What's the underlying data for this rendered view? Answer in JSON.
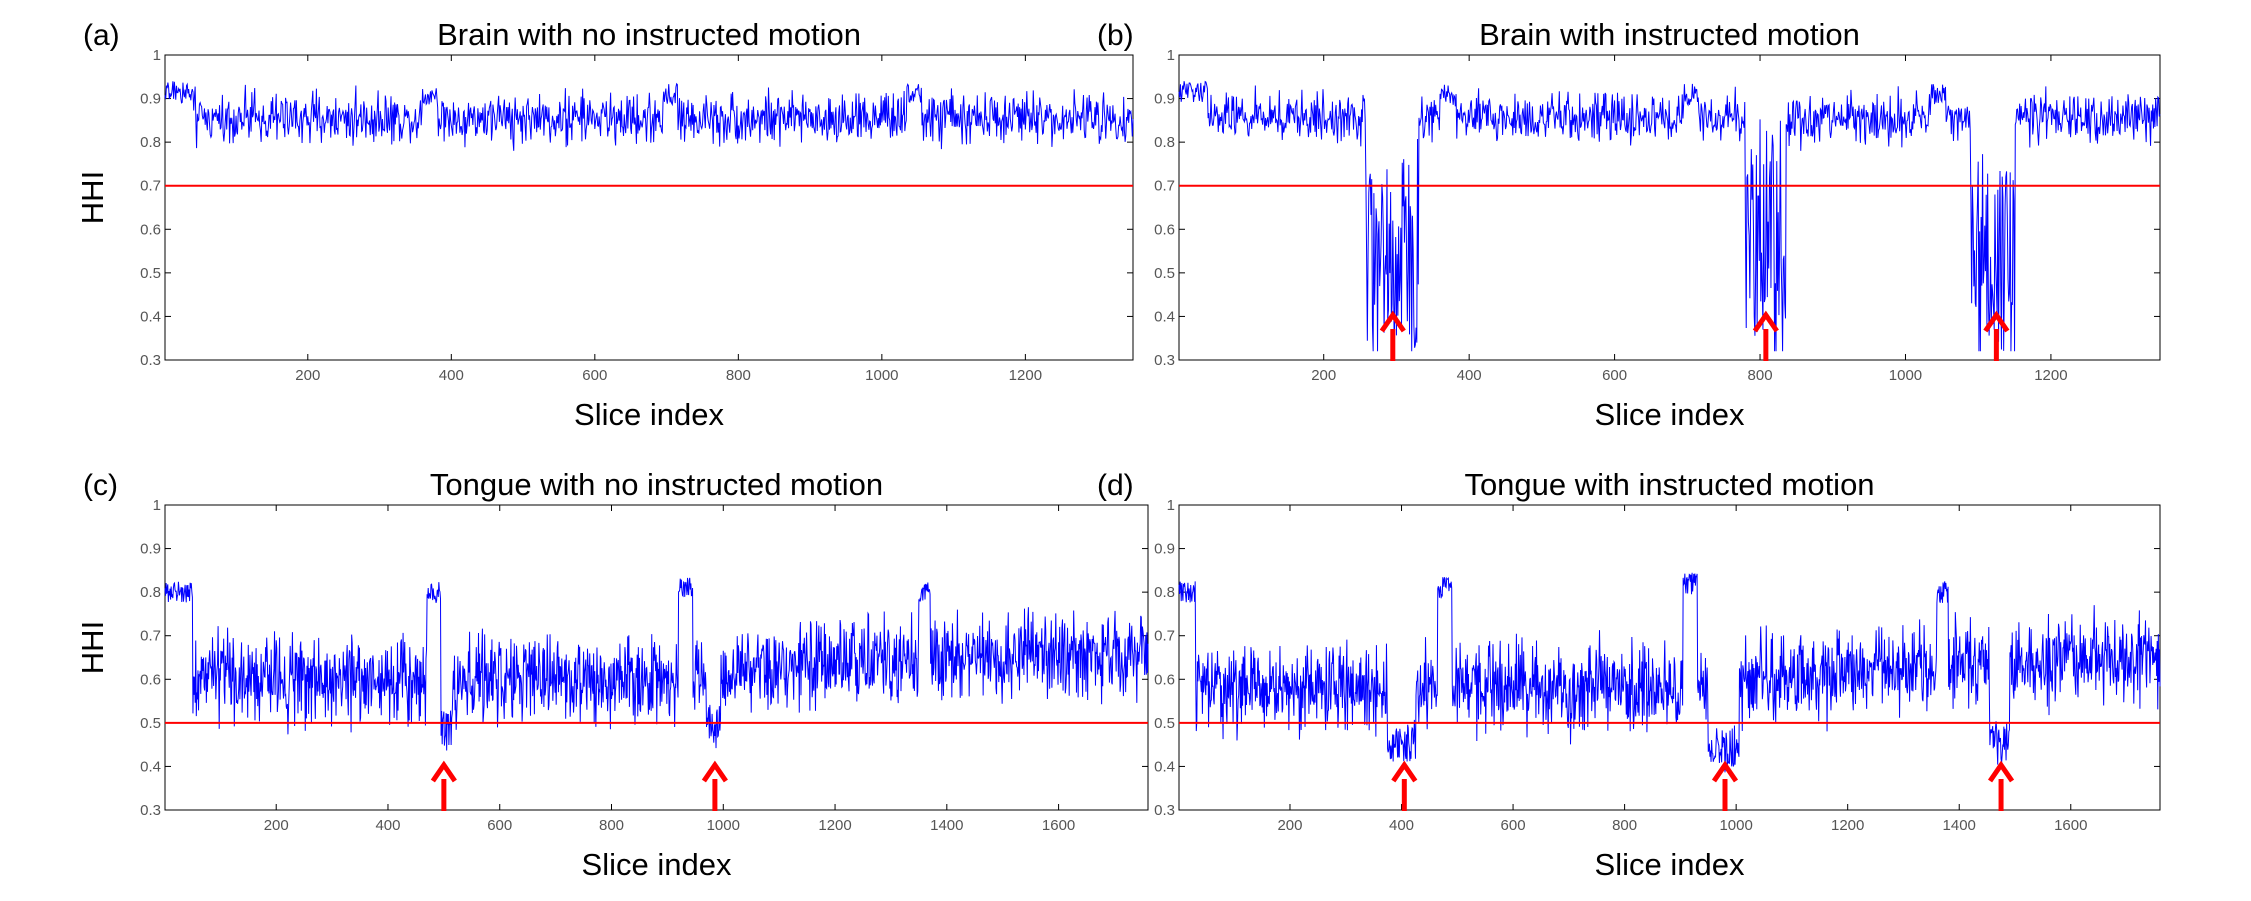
{
  "chart_data": [
    {
      "type": "line",
      "panel_label": "(a)",
      "title": "Brain with no instructed motion",
      "xlabel": "Slice index",
      "ylabel": "HHI",
      "xlim": [
        1,
        1350
      ],
      "ylim": [
        0.3,
        1.0
      ],
      "xticks": [
        200,
        400,
        600,
        800,
        1000,
        1200
      ],
      "yticks": [
        0.3,
        0.4,
        0.5,
        0.6,
        0.7,
        0.8,
        0.9,
        1
      ],
      "grid": false,
      "threshold": 0.7,
      "arrows_at": [],
      "series_profile": {
        "base": 0.855,
        "noise": 0.035,
        "highs": [
          [
            1,
            40,
            0.915
          ],
          [
            360,
            380,
            0.91
          ],
          [
            695,
            715,
            0.91
          ],
          [
            1035,
            1055,
            0.91
          ]
        ],
        "dips": []
      },
      "colors": {
        "line": "#0000ff",
        "threshold": "#ff0000",
        "arrow": "#ff0000"
      }
    },
    {
      "type": "line",
      "panel_label": "(b)",
      "title": "Brain with instructed motion",
      "xlabel": "Slice index",
      "ylabel": "",
      "xlim": [
        1,
        1350
      ],
      "ylim": [
        0.3,
        1.0
      ],
      "xticks": [
        200,
        400,
        600,
        800,
        1000,
        1200
      ],
      "yticks": [
        0.3,
        0.4,
        0.5,
        0.6,
        0.7,
        0.8,
        0.9,
        1
      ],
      "grid": false,
      "threshold": 0.7,
      "arrows_at": [
        295,
        808,
        1125
      ],
      "series_profile": {
        "base": 0.855,
        "noise": 0.035,
        "highs": [
          [
            1,
            40,
            0.915
          ],
          [
            360,
            380,
            0.91
          ],
          [
            695,
            715,
            0.91
          ],
          [
            1035,
            1055,
            0.91
          ]
        ],
        "dips": [
          [
            258,
            330,
            0.52,
            0.16
          ],
          [
            780,
            835,
            0.55,
            0.18
          ],
          [
            1090,
            1150,
            0.55,
            0.16
          ]
        ]
      },
      "colors": {
        "line": "#0000ff",
        "threshold": "#ff0000",
        "arrow": "#ff0000"
      }
    },
    {
      "type": "line",
      "panel_label": "(c)",
      "title": "Tongue with no instructed motion",
      "xlabel": "Slice index",
      "ylabel": "HHI",
      "xlim": [
        1,
        1760
      ],
      "ylim": [
        0.3,
        1.0
      ],
      "xticks": [
        200,
        400,
        600,
        800,
        1000,
        1200,
        1400,
        1600
      ],
      "yticks": [
        0.3,
        0.4,
        0.5,
        0.6,
        0.7,
        0.8,
        0.9,
        1
      ],
      "grid": false,
      "threshold": 0.5,
      "arrows_at": [
        500,
        985
      ],
      "series_profile": {
        "base": 0.6,
        "noise": 0.06,
        "trend": [
          [
            1,
            0.6
          ],
          [
            1000,
            0.6
          ],
          [
            1200,
            0.64
          ],
          [
            1760,
            0.66
          ]
        ],
        "highs": [
          [
            1,
            50,
            0.8
          ],
          [
            470,
            495,
            0.8
          ],
          [
            920,
            945,
            0.81
          ],
          [
            1350,
            1370,
            0.8
          ]
        ],
        "dips": [
          [
            495,
            515,
            0.49,
            0.03
          ],
          [
            970,
            995,
            0.49,
            0.03
          ]
        ]
      },
      "colors": {
        "line": "#0000ff",
        "threshold": "#ff0000",
        "arrow": "#ff0000"
      }
    },
    {
      "type": "line",
      "panel_label": "(d)",
      "title": "Tongue with instructed motion",
      "xlabel": "Slice index",
      "ylabel": "",
      "xlim": [
        1,
        1760
      ],
      "ylim": [
        0.3,
        1.0
      ],
      "xticks": [
        200,
        400,
        600,
        800,
        1000,
        1200,
        1400,
        1600
      ],
      "yticks": [
        0.3,
        0.4,
        0.5,
        0.6,
        0.7,
        0.8,
        0.9,
        1
      ],
      "grid": false,
      "threshold": 0.5,
      "arrows_at": [
        405,
        980,
        1475
      ],
      "series_profile": {
        "base": 0.58,
        "noise": 0.06,
        "trend": [
          [
            1,
            0.58
          ],
          [
            900,
            0.58
          ],
          [
            1200,
            0.62
          ],
          [
            1760,
            0.65
          ]
        ],
        "highs": [
          [
            1,
            30,
            0.8
          ],
          [
            465,
            490,
            0.81
          ],
          [
            905,
            930,
            0.82
          ],
          [
            1360,
            1380,
            0.8
          ]
        ],
        "dips": [
          [
            375,
            425,
            0.45,
            0.03
          ],
          [
            950,
            1005,
            0.44,
            0.03
          ],
          [
            1455,
            1490,
            0.46,
            0.03
          ]
        ]
      },
      "colors": {
        "line": "#0000ff",
        "threshold": "#ff0000",
        "arrow": "#ff0000"
      }
    }
  ]
}
